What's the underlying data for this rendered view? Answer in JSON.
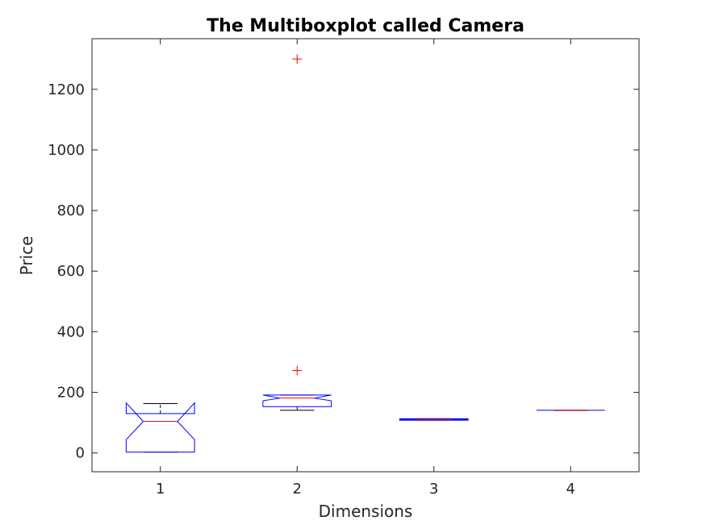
{
  "chart_data": {
    "type": "boxplot",
    "title": "The Multiboxplot called Camera",
    "xlabel": "Dimensions",
    "ylabel": "Price",
    "ylim": [
      -62,
      1367
    ],
    "xlim": [
      0.5,
      4.5
    ],
    "y_ticks": [
      0,
      200,
      400,
      600,
      800,
      1000,
      1200
    ],
    "x_ticks": [
      1,
      2,
      3,
      4
    ],
    "notched": true,
    "grid": false,
    "colors": {
      "box": "#0000ff",
      "median": "#ff0000",
      "whisker": "#000000",
      "outlier": "#ff0000",
      "axis": "#262626"
    },
    "boxes": [
      {
        "position": 1,
        "label": "1",
        "q1": 3,
        "median": 104,
        "q3": 130,
        "notch_low": 44,
        "notch_high": 165,
        "whisker_low": 3,
        "whisker_high": 163,
        "outliers": []
      },
      {
        "position": 2,
        "label": "2",
        "q1": 153,
        "median": 181,
        "q3": 191,
        "notch_low": 172,
        "notch_high": 191,
        "whisker_low": 141,
        "whisker_high": 191,
        "outliers": [
          272,
          1300
        ]
      },
      {
        "position": 3,
        "label": "3",
        "q1": 108,
        "median": 110,
        "q3": 113,
        "notch_low": 109,
        "notch_high": 112,
        "whisker_low": 108,
        "whisker_high": 113,
        "outliers": []
      },
      {
        "position": 4,
        "label": "4",
        "q1": 141,
        "median": 141,
        "q3": 141,
        "notch_low": 141,
        "notch_high": 141,
        "whisker_low": 141,
        "whisker_high": 141,
        "outliers": []
      }
    ]
  }
}
